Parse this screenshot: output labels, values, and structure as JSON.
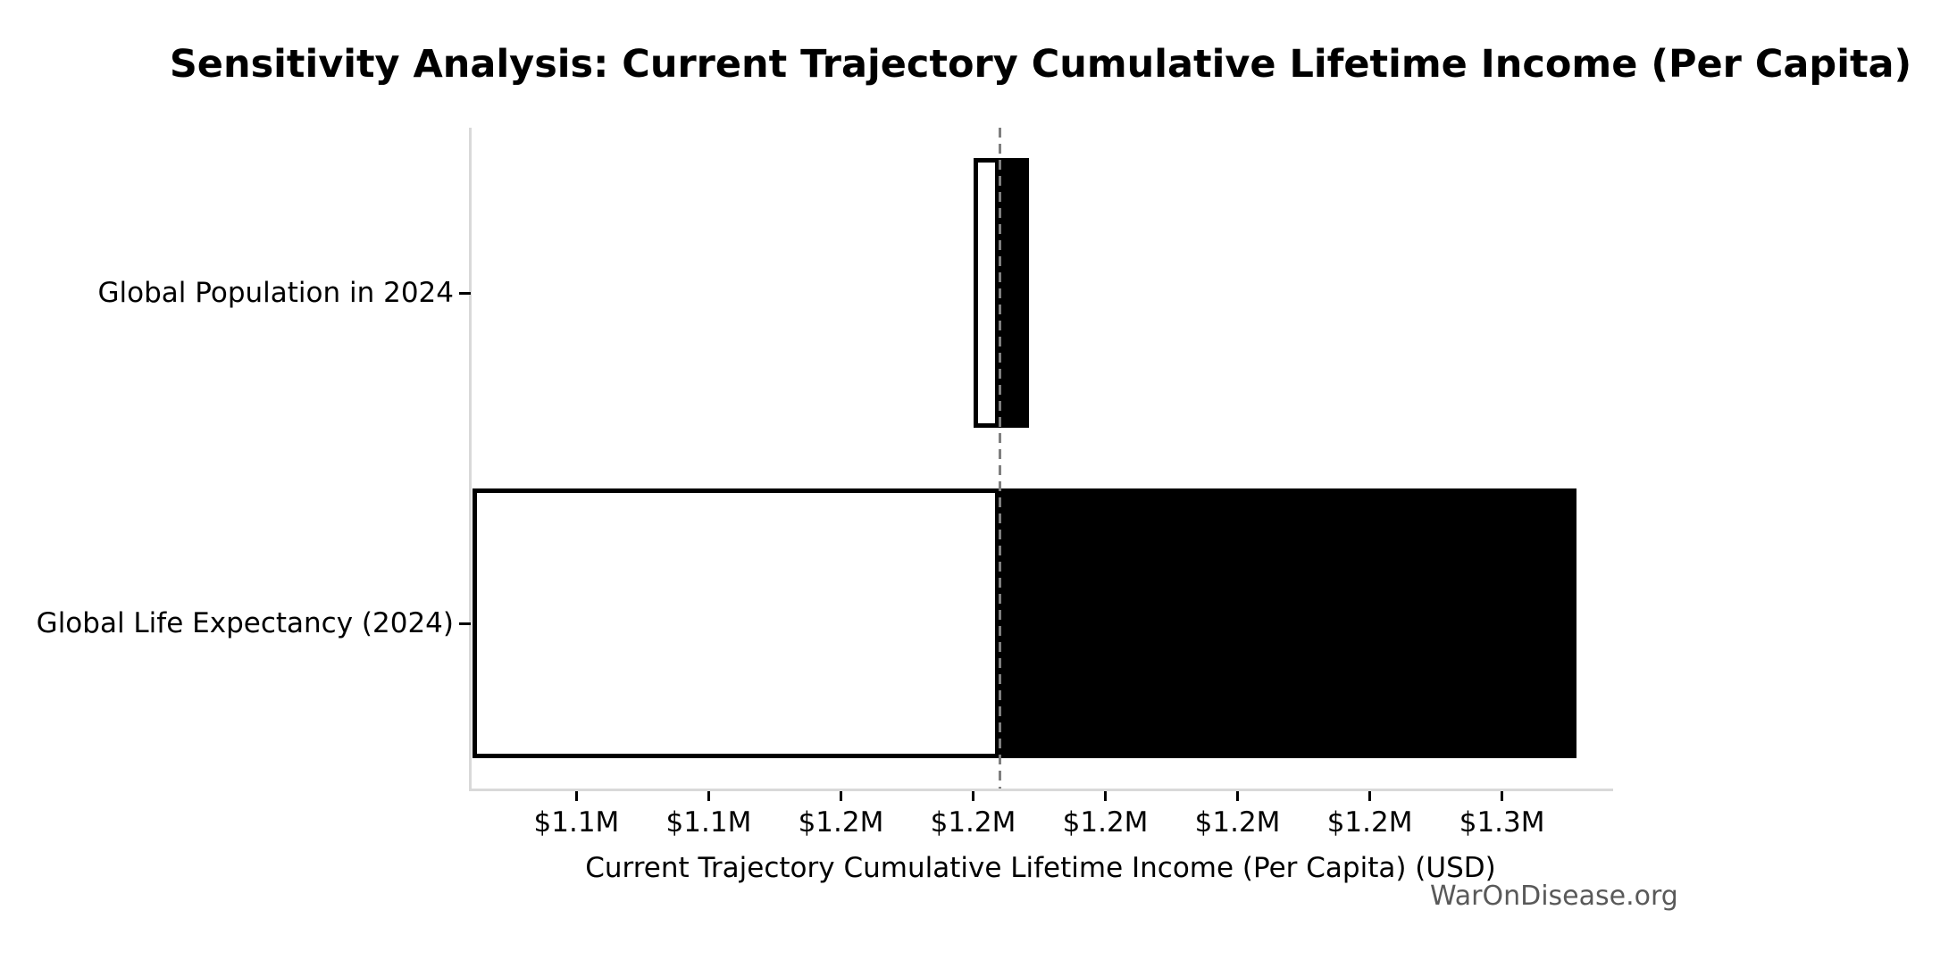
{
  "title": "Sensitivity Analysis: Current Trajectory Cumulative Lifetime Income (Per Capita)",
  "watermark": "WarOnDisease.org",
  "chart_data": {
    "type": "bar",
    "subtype": "horizontal-tornado-sensitivity",
    "title": "Sensitivity Analysis: Current Trajectory Cumulative Lifetime Income (Per Capita)",
    "xlabel": "Current Trajectory Cumulative Lifetime Income (Per Capita) (USD)",
    "ylabel": "",
    "categories": [
      "Global Population in 2024",
      "Global Life Expectancy (2024)"
    ],
    "baseline_value_usd": 1180000,
    "series": [
      {
        "name": "Global Population in 2024",
        "low_usd": 1175000,
        "high_usd": 1185500
      },
      {
        "name": "Global Life Expectancy (2024)",
        "low_usd": 1080300,
        "high_usd": 1289000
      }
    ],
    "x_ticks": [
      {
        "value": 1100000,
        "label": "$1.1M"
      },
      {
        "value": 1125000,
        "label": "$1.1M"
      },
      {
        "value": 1150000,
        "label": "$1.2M"
      },
      {
        "value": 1175000,
        "label": "$1.2M"
      },
      {
        "value": 1200000,
        "label": "$1.2M"
      },
      {
        "value": 1225000,
        "label": "$1.2M"
      },
      {
        "value": 1250000,
        "label": "$1.2M"
      },
      {
        "value": 1275000,
        "label": "$1.3M"
      }
    ],
    "xlim": [
      1080000,
      1295500
    ],
    "grid": false,
    "legend": "none",
    "colors": {
      "bar_low_fill": "#ffffff",
      "bar_high_fill": "#000000",
      "bar_edge": "#000000",
      "baseline_dash": "#7f7f7f",
      "spine": "#d9d9d9",
      "tick_mark": "#000000",
      "text": "#000000",
      "watermark": "#595959",
      "background": "#ffffff"
    }
  }
}
